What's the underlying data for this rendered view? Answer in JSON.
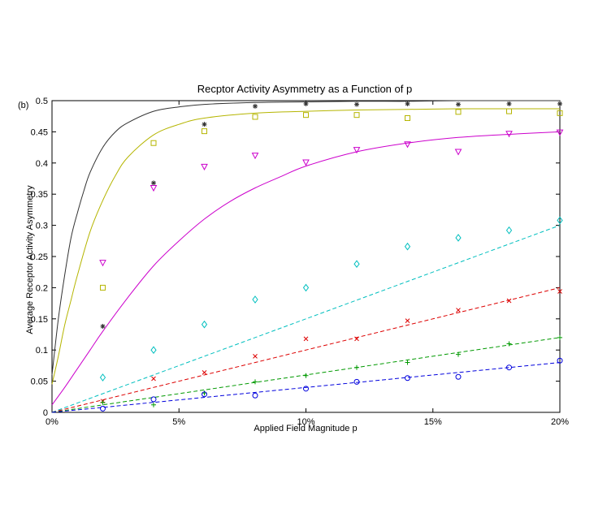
{
  "chart_data": {
    "type": "scatter",
    "title": "Recptor Activity Asymmetry as a Function of p",
    "panel_label": "(b)",
    "xlabel": "Applied Field Magnitude p",
    "ylabel": "Average Receptor Activity Asymmetry",
    "xlim": [
      0,
      20
    ],
    "ylim": [
      0,
      0.5
    ],
    "x_ticks": [
      0,
      5,
      10,
      15,
      20
    ],
    "x_tick_labels": [
      "0%",
      "5%",
      "10%",
      "15%",
      "20%"
    ],
    "y_ticks": [
      0,
      0.05,
      0.1,
      0.15,
      0.2,
      0.25,
      0.3,
      0.35,
      0.4,
      0.45,
      0.5
    ],
    "y_tick_labels": [
      "0",
      "0.05",
      "0.1",
      "0.15",
      "0.2",
      "0.25",
      "0.3",
      "0.35",
      "0.4",
      "0.45",
      "0.5"
    ],
    "grid": false,
    "legend": false,
    "series": [
      {
        "marker": "asterisk",
        "color": "#333333",
        "x": [
          2,
          4,
          6,
          8,
          10,
          12,
          14,
          16,
          18,
          20
        ],
        "y": [
          0.138,
          0.368,
          0.462,
          0.491,
          0.495,
          0.494,
          0.495,
          0.494,
          0.495,
          0.495
        ],
        "fit": {
          "color": "#333333",
          "style": "solid",
          "x": [
            0,
            0.25,
            0.5,
            0.75,
            1,
            1.25,
            1.5,
            2,
            2.5,
            3,
            4,
            5,
            6,
            8,
            10,
            12,
            14,
            16,
            18,
            20
          ],
          "y": [
            0.06,
            0.15,
            0.22,
            0.28,
            0.32,
            0.355,
            0.385,
            0.425,
            0.45,
            0.465,
            0.483,
            0.49,
            0.494,
            0.497,
            0.498,
            0.499,
            0.499,
            0.5,
            0.5,
            0.5
          ]
        }
      },
      {
        "marker": "square",
        "color": "#b5b500",
        "x": [
          2,
          4,
          6,
          8,
          10,
          12,
          14,
          16,
          18,
          20
        ],
        "y": [
          0.2,
          0.432,
          0.451,
          0.474,
          0.477,
          0.477,
          0.472,
          0.482,
          0.483,
          0.48
        ],
        "fit": {
          "color": "#b5b500",
          "style": "solid",
          "x": [
            0,
            0.25,
            0.5,
            0.75,
            1,
            1.5,
            2,
            2.5,
            3,
            4,
            5,
            6,
            8,
            10,
            12,
            14,
            16,
            18,
            20
          ],
          "y": [
            0.045,
            0.09,
            0.14,
            0.18,
            0.22,
            0.29,
            0.34,
            0.38,
            0.41,
            0.445,
            0.462,
            0.472,
            0.48,
            0.483,
            0.485,
            0.486,
            0.487,
            0.487,
            0.487
          ]
        }
      },
      {
        "marker": "triangle-down",
        "color": "#cc00cc",
        "x": [
          2,
          4,
          6,
          8,
          10,
          12,
          14,
          16,
          18,
          20
        ],
        "y": [
          0.24,
          0.36,
          0.394,
          0.412,
          0.401,
          0.421,
          0.43,
          0.418,
          0.447,
          0.449
        ],
        "fit": {
          "color": "#cc00cc",
          "style": "solid",
          "x": [
            0,
            0.5,
            1,
            1.5,
            2,
            3,
            4,
            5,
            6,
            7,
            8,
            9,
            10,
            12,
            14,
            16,
            18,
            20
          ],
          "y": [
            0.012,
            0.04,
            0.07,
            0.1,
            0.13,
            0.185,
            0.235,
            0.275,
            0.31,
            0.338,
            0.36,
            0.378,
            0.395,
            0.418,
            0.432,
            0.441,
            0.446,
            0.45
          ]
        }
      },
      {
        "marker": "diamond",
        "color": "#00bfbf",
        "x": [
          2,
          4,
          6,
          8,
          10,
          12,
          14,
          16,
          18,
          20
        ],
        "y": [
          0.056,
          0.1,
          0.141,
          0.181,
          0.2,
          0.238,
          0.266,
          0.28,
          0.292,
          0.308
        ],
        "fit": {
          "color": "#00bfbf",
          "style": "dashed",
          "x": [
            0,
            20
          ],
          "y": [
            0,
            0.3
          ]
        }
      },
      {
        "marker": "x",
        "color": "#dd0000",
        "x": [
          2,
          4,
          6,
          8,
          10,
          12,
          14,
          16,
          18,
          20
        ],
        "y": [
          0.018,
          0.054,
          0.064,
          0.09,
          0.118,
          0.118,
          0.147,
          0.164,
          0.179,
          0.194
        ],
        "fit": {
          "color": "#dd0000",
          "style": "dashed",
          "x": [
            0,
            20
          ],
          "y": [
            0,
            0.2
          ]
        }
      },
      {
        "marker": "plus",
        "color": "#009900",
        "x": [
          2,
          4,
          6,
          8,
          10,
          12,
          14,
          16,
          18,
          20
        ],
        "y": [
          0.016,
          0.012,
          0.031,
          0.049,
          0.059,
          0.072,
          0.08,
          0.093,
          0.11,
          0.12
        ],
        "fit": {
          "color": "#009900",
          "style": "dashed",
          "x": [
            0,
            20
          ],
          "y": [
            0,
            0.12
          ]
        }
      },
      {
        "marker": "circle",
        "color": "#0000dd",
        "x": [
          2,
          4,
          6,
          8,
          10,
          12,
          14,
          16,
          18,
          20
        ],
        "y": [
          0.006,
          0.021,
          0.029,
          0.027,
          0.038,
          0.049,
          0.055,
          0.057,
          0.072,
          0.083
        ],
        "fit": {
          "color": "#0000dd",
          "style": "dashed",
          "x": [
            0,
            20
          ],
          "y": [
            0,
            0.08
          ]
        }
      }
    ]
  }
}
